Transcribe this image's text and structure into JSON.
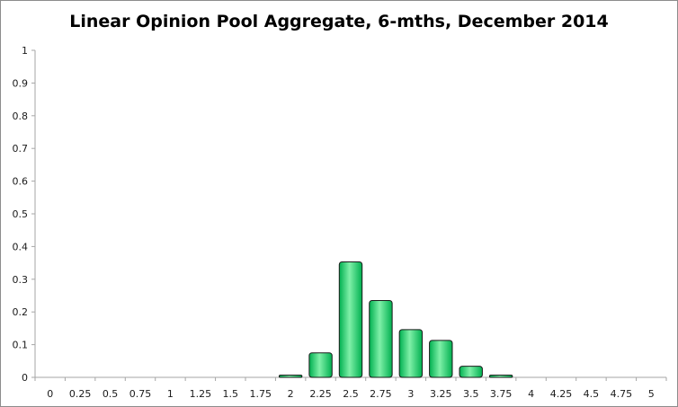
{
  "chart_data": {
    "type": "bar",
    "title": "Linear Opinion Pool Aggregate, 6-mths, December 2014",
    "xlabel": "",
    "ylabel": "",
    "categories": [
      "0",
      "0.25",
      "0.5",
      "0.75",
      "1",
      "1.25",
      "1.5",
      "1.75",
      "2",
      "2.25",
      "2.5",
      "2.75",
      "3",
      "3.25",
      "3.5",
      "3.75",
      "4",
      "4.25",
      "4.5",
      "4.75",
      "5"
    ],
    "values": [
      0,
      0,
      0,
      0,
      0,
      0,
      0,
      0,
      0.007,
      0.075,
      0.353,
      0.235,
      0.146,
      0.113,
      0.034,
      0.007,
      0,
      0,
      0,
      0,
      0
    ],
    "ylim": [
      0,
      1
    ],
    "yticks": [
      "0",
      "0.1",
      "0.2",
      "0.3",
      "0.4",
      "0.5",
      "0.6",
      "0.7",
      "0.8",
      "0.9",
      "1"
    ],
    "grid": false,
    "legend": "none",
    "colors": {
      "bar_fill": "#00b050",
      "bar_highlight": "#7ff0a8",
      "bar_edge": "#1a1a1a",
      "axis": "#a6a6a6"
    }
  }
}
